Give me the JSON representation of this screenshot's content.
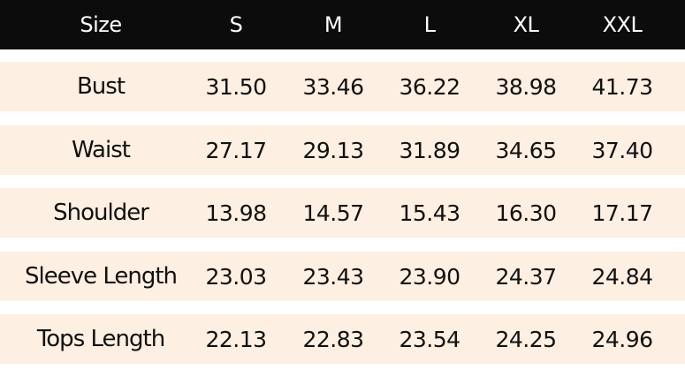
{
  "table": {
    "header": [
      "Size",
      "S",
      "M",
      "L",
      "XL",
      "XXL"
    ],
    "rows": [
      [
        "Bust",
        "31.50",
        "33.46",
        "36.22",
        "38.98",
        "41.73"
      ],
      [
        "Waist",
        "27.17",
        "29.13",
        "31.89",
        "34.65",
        "37.40"
      ],
      [
        "Shoulder",
        "13.98",
        "14.57",
        "15.43",
        "16.30",
        "17.17"
      ],
      [
        "Sleeve Length",
        "23.03",
        "23.43",
        "23.90",
        "24.37",
        "24.84"
      ],
      [
        "Tops Length",
        "22.13",
        "22.83",
        "23.54",
        "24.25",
        "24.96"
      ]
    ]
  }
}
